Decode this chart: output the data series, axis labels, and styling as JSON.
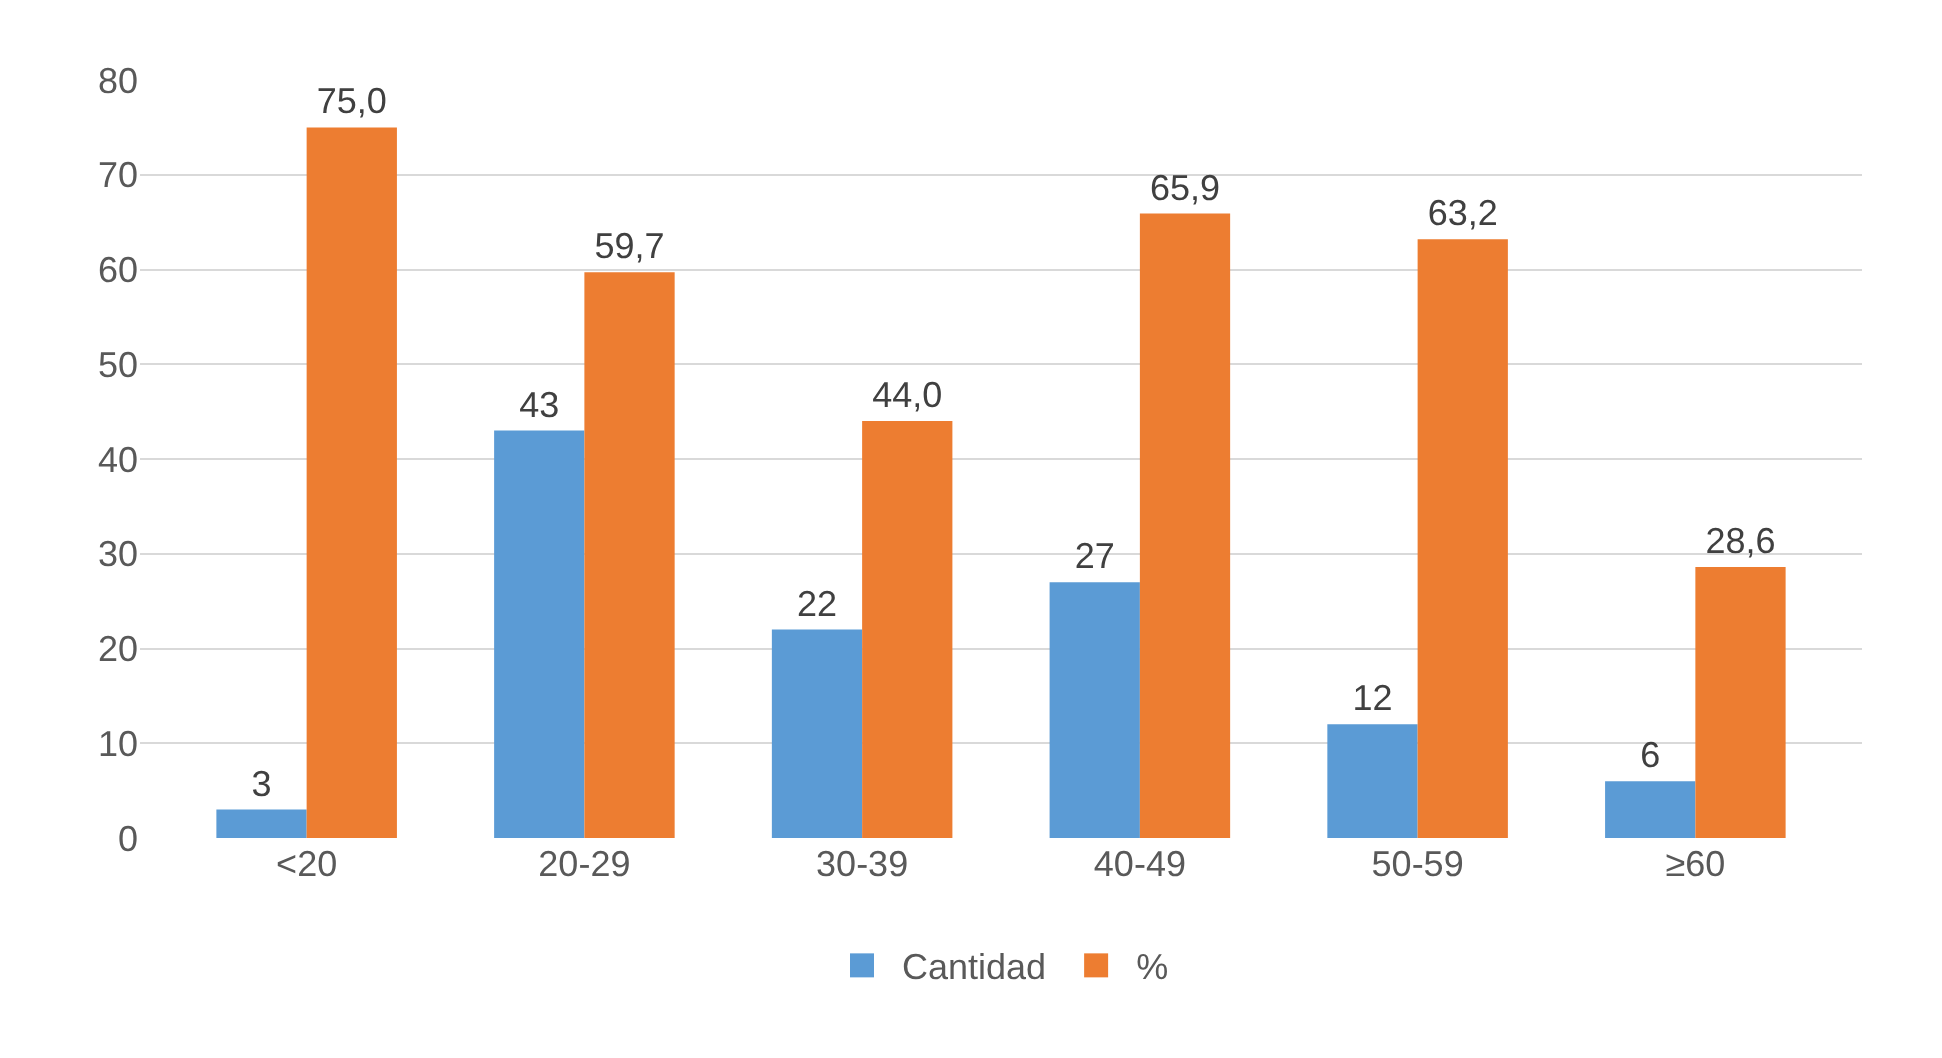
{
  "chart_data": {
    "type": "bar",
    "categories": [
      "<20",
      "20-29",
      "30-39",
      "40-49",
      "50-59",
      "≥60"
    ],
    "series": [
      {
        "name": "Cantidad",
        "color": "#5b9bd5",
        "values": [
          3,
          43,
          22,
          27,
          12,
          6
        ],
        "value_labels": [
          "3",
          "43",
          "22",
          "27",
          "12",
          "6"
        ]
      },
      {
        "name": "%",
        "color": "#ed7d31",
        "values": [
          75.0,
          59.7,
          44.0,
          65.9,
          63.2,
          28.6
        ],
        "value_labels": [
          "75,0",
          "59,7",
          "44,0",
          "65,9",
          "63,2",
          "28,6"
        ]
      }
    ],
    "ylim": [
      0,
      80
    ],
    "yticks": [
      0,
      10,
      20,
      30,
      40,
      50,
      60,
      70,
      80
    ],
    "grid": "y",
    "legend": "bottom"
  }
}
